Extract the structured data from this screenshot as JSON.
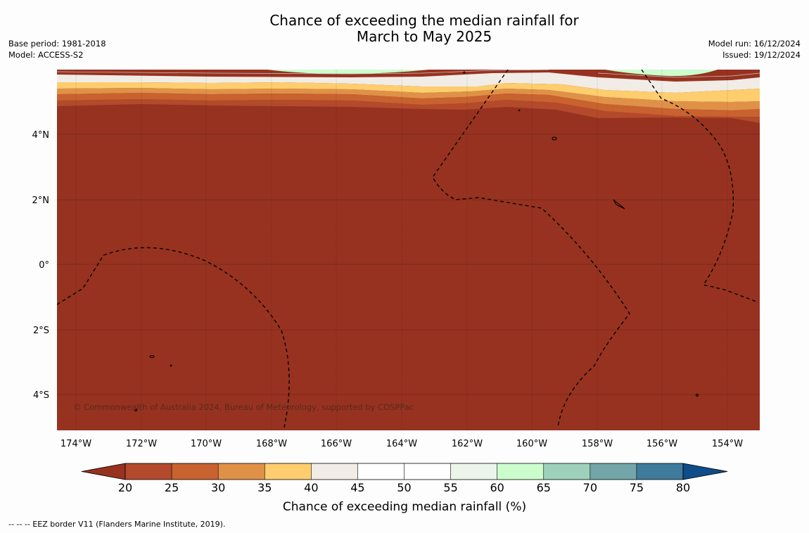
{
  "title": {
    "line1": "Chance of exceeding the median rainfall for",
    "line2": "March to May 2025"
  },
  "meta_left": {
    "base_period": "Base period: 1981-2018",
    "model": "Model: ACCESS-S2"
  },
  "meta_right": {
    "model_run": "Model run: 16/12/2024",
    "issued": "Issued: 19/12/2024"
  },
  "map": {
    "lat_labels": [
      "4°N",
      "2°N",
      "0°",
      "2°S",
      "4°S"
    ],
    "lon_labels": [
      "174°W",
      "172°W",
      "170°W",
      "168°W",
      "166°W",
      "164°W",
      "162°W",
      "160°W",
      "158°W",
      "156°W",
      "154°W"
    ],
    "fill_color": "#973220",
    "copyright": "© Commonwealth of Australia 2024, Bureau of Meteorology, supported by COSPPac"
  },
  "colorbar": {
    "ticks": [
      "20",
      "25",
      "30",
      "35",
      "40",
      "45",
      "50",
      "55",
      "60",
      "65",
      "70",
      "75",
      "80"
    ],
    "colors": [
      "#973220",
      "#b24a2b",
      "#c8622f",
      "#e09148",
      "#fdcd6e",
      "#f1ece6",
      "#ffffff",
      "#ffffff",
      "#ecf6e8",
      "#cbfdcd",
      "#9dd1bb",
      "#72a6a8",
      "#3f7b9c",
      "#0e4d88"
    ],
    "label": "Chance of exceeding median rainfall (%)"
  },
  "footnote": "--  --  -- EEZ border V11 (Flanders Marine Institute, 2019)."
}
